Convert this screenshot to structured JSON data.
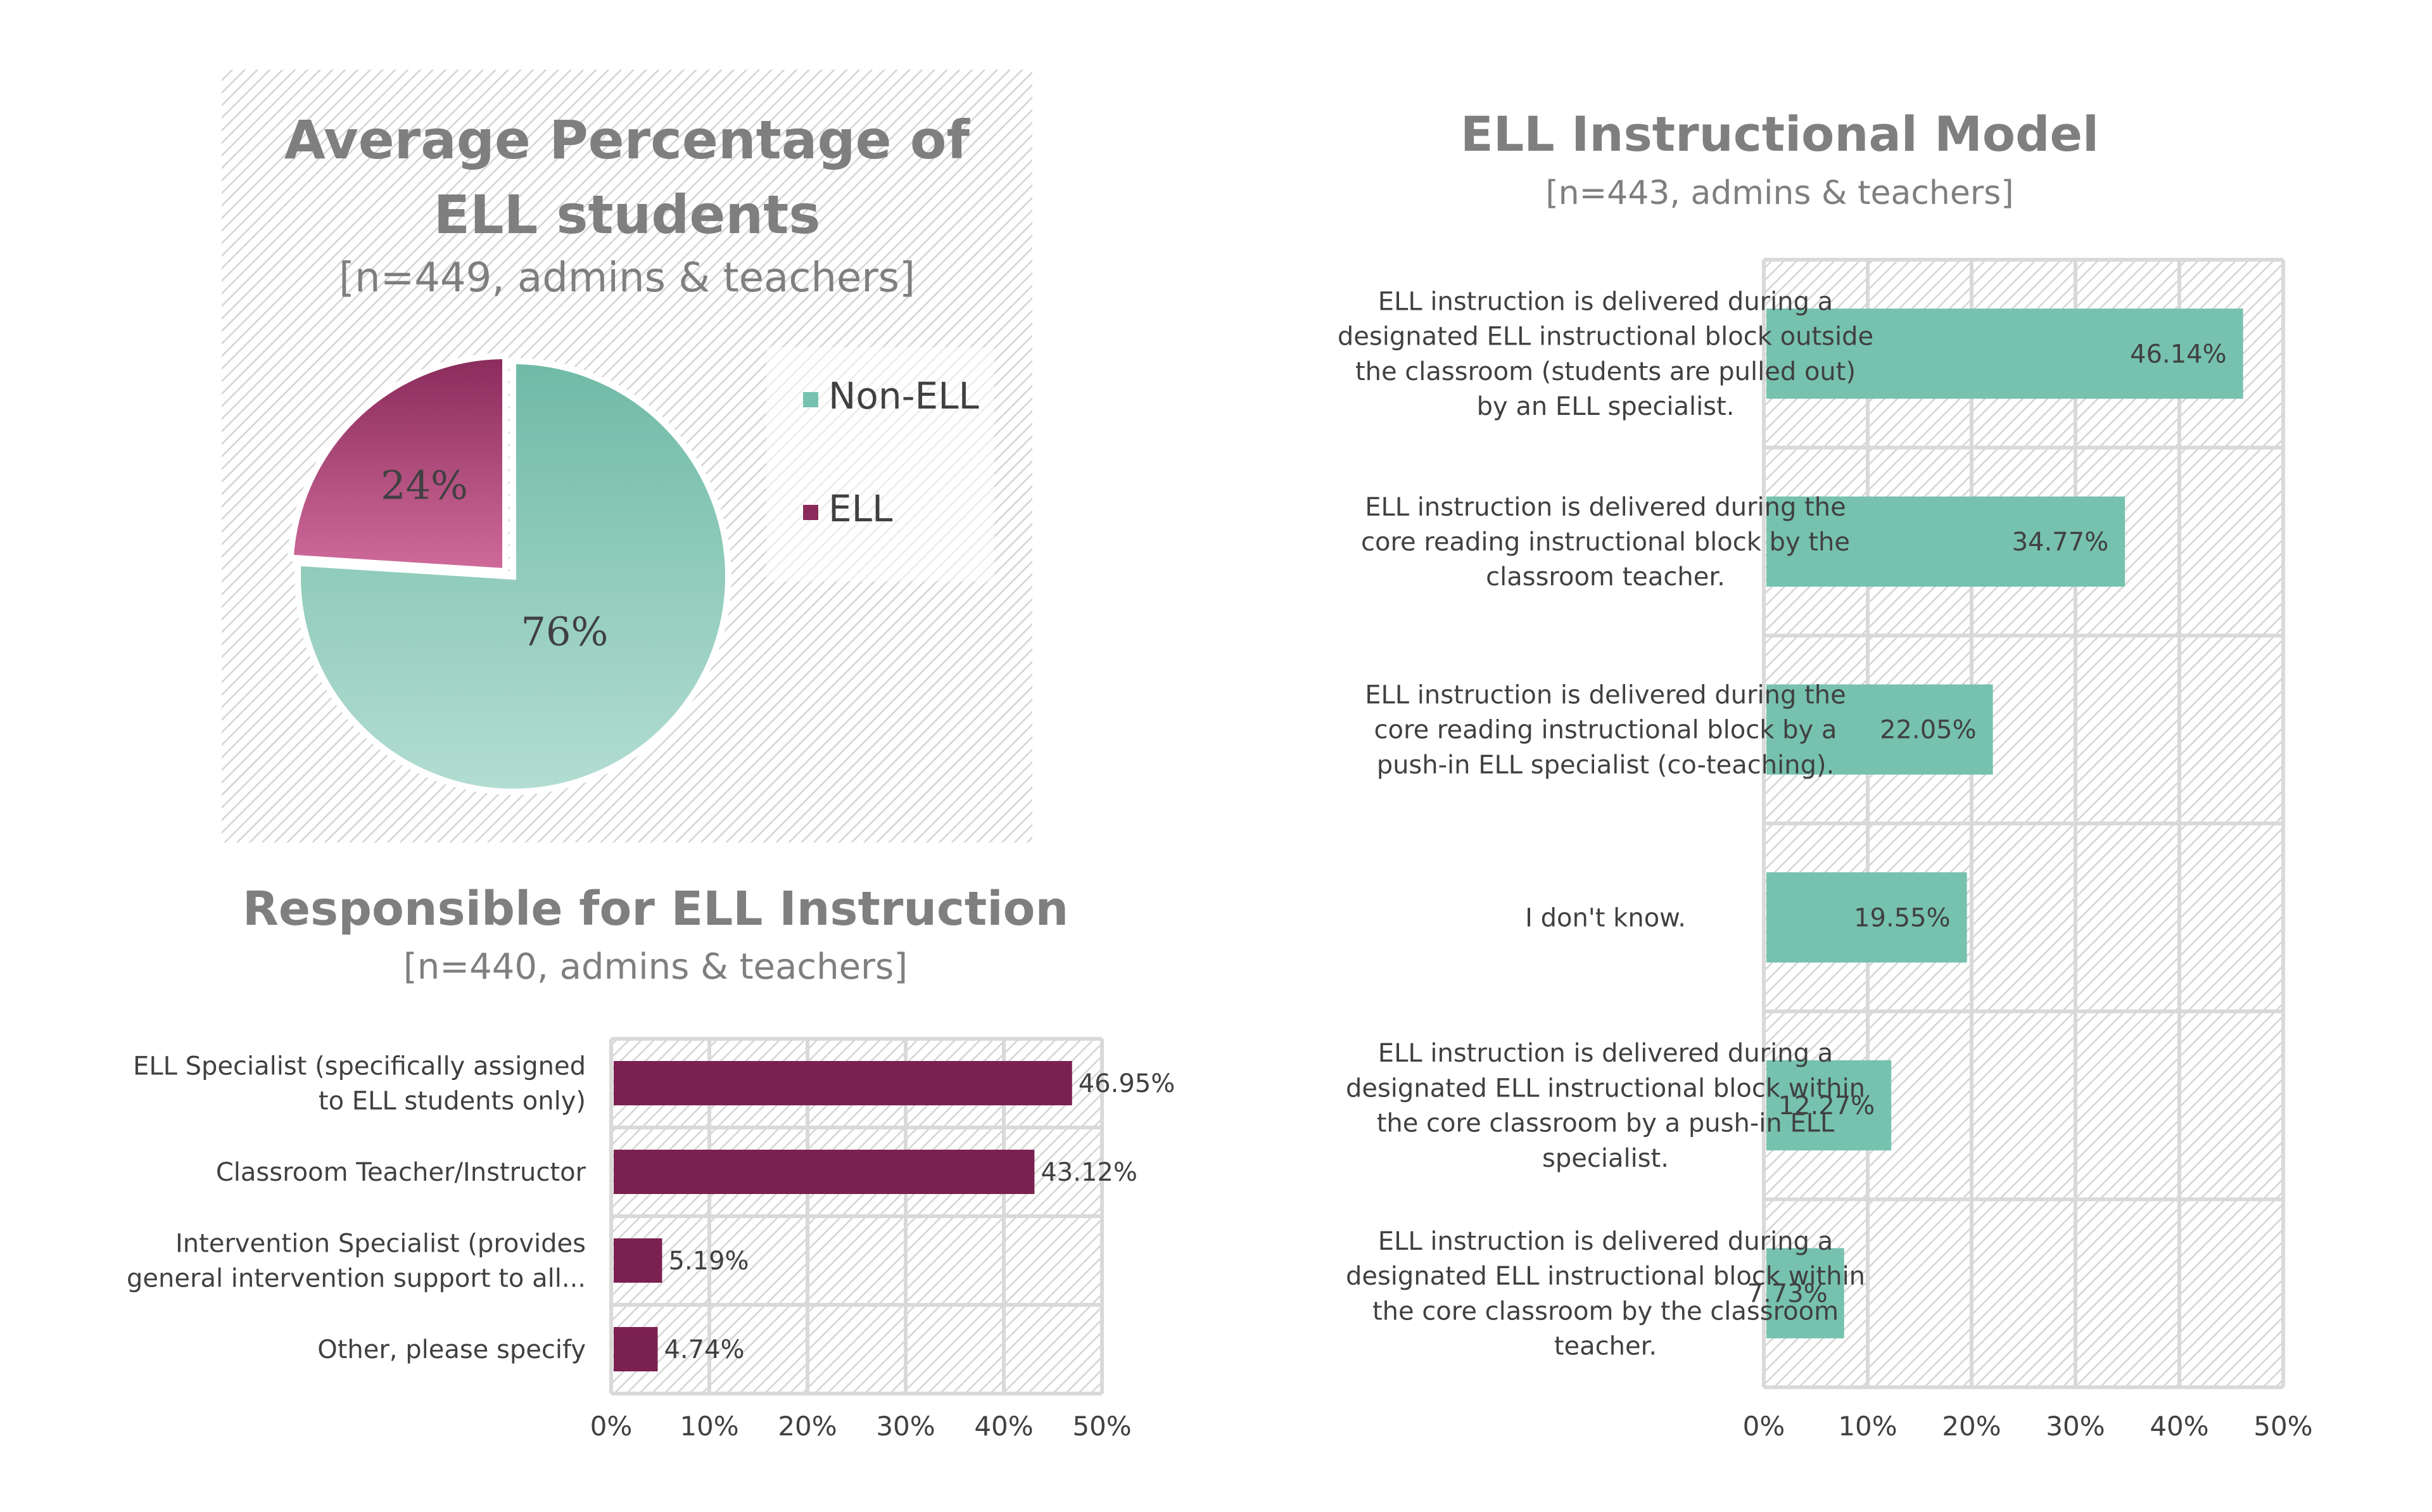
{
  "colors": {
    "teal": "#76c2ae",
    "teal_light": "#b3ddd2",
    "teal_dark": "#6fbaa6",
    "magenta": "#7b2150",
    "pink": "#cf6b9a",
    "pink_dark": "#8a2b5b",
    "text_gray": "#7f7f7f",
    "text_dark": "#404040",
    "grid": "#d9d9d9"
  },
  "chart_data": [
    {
      "id": "pie",
      "type": "pie",
      "title_lines": [
        "Average Percentage of",
        "ELL students"
      ],
      "subtitle": "[n=449, admins & teachers]",
      "slices": [
        {
          "name": "Non-ELL",
          "value": 76,
          "label": "76%"
        },
        {
          "name": "ELL",
          "value": 24,
          "label": "24%"
        }
      ],
      "legend": [
        "Non-ELL",
        "ELL"
      ],
      "legend_position": "right"
    },
    {
      "id": "responsible",
      "type": "bar",
      "orientation": "horizontal",
      "title": "Responsible for ELL Instruction",
      "subtitle": "[n=440, admins & teachers]",
      "categories": [
        [
          "ELL Specialist (specifically assigned",
          "to ELL students only)"
        ],
        [
          "Classroom Teacher/Instructor"
        ],
        [
          "Intervention Specialist (provides",
          "general intervention support to all..."
        ],
        [
          "Other, please specify"
        ]
      ],
      "values": [
        46.95,
        43.12,
        5.19,
        4.74
      ],
      "value_labels": [
        "46.95%",
        "43.12%",
        "5.19%",
        "4.74%"
      ],
      "xlim": [
        0,
        50
      ],
      "ticks": [
        "0%",
        "10%",
        "20%",
        "30%",
        "40%",
        "50%"
      ],
      "grid": true
    },
    {
      "id": "model",
      "type": "bar",
      "orientation": "horizontal",
      "title": "ELL Instructional Model",
      "subtitle": "[n=443, admins & teachers]",
      "categories": [
        [
          "ELL instruction is delivered during a",
          "designated ELL instructional block outside",
          "the classroom (students are pulled out)",
          "by an ELL specialist."
        ],
        [
          "ELL instruction is delivered during the",
          "core reading instructional block by the",
          "classroom teacher."
        ],
        [
          "ELL instruction is delivered during the",
          "core reading instructional block by a",
          "push-in ELL specialist (co-teaching)."
        ],
        [
          "I don't know."
        ],
        [
          "ELL instruction is delivered during a",
          "designated ELL instructional block within",
          "the core classroom by a push-in ELL",
          "specialist."
        ],
        [
          "ELL instruction is delivered during a",
          "designated ELL instructional block within",
          "the core classroom by the classroom",
          "teacher."
        ]
      ],
      "values": [
        46.14,
        34.77,
        22.05,
        19.55,
        12.27,
        7.73
      ],
      "value_labels": [
        "46.14%",
        "34.77%",
        "22.05%",
        "19.55%",
        "12.27%",
        "7.73%"
      ],
      "xlim": [
        0,
        50
      ],
      "ticks": [
        "0%",
        "10%",
        "20%",
        "30%",
        "40%",
        "50%"
      ],
      "grid": true
    }
  ]
}
